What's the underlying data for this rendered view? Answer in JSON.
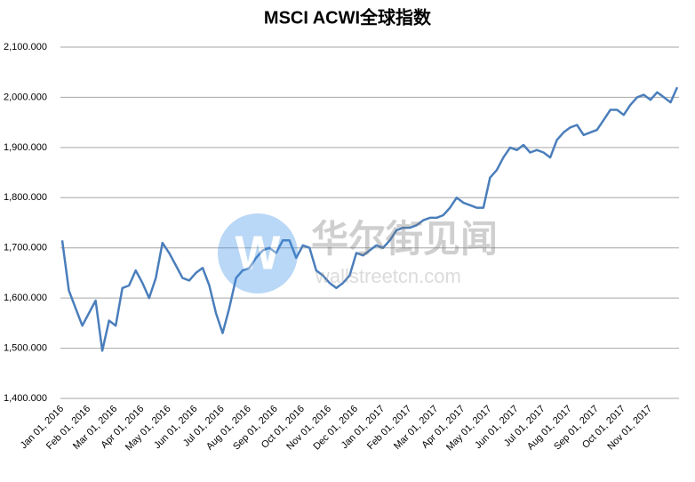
{
  "chart_data": {
    "type": "line",
    "title": "MSCI ACWI全球指数",
    "categories": [
      "Jan 01, 2016",
      null,
      null,
      null,
      "Feb 01, 2016",
      null,
      null,
      null,
      "Mar 01, 2016",
      null,
      null,
      null,
      "Apr 01, 2016",
      null,
      null,
      null,
      "May 01, 2016",
      null,
      null,
      null,
      "Jun 01, 2016",
      null,
      null,
      null,
      "Jul 01, 2016",
      null,
      null,
      null,
      "Aug 01, 2016",
      null,
      null,
      null,
      "Sep 01, 2016",
      null,
      null,
      null,
      "Oct 01, 2016",
      null,
      null,
      null,
      "Nov 01, 2016",
      null,
      null,
      null,
      "Dec 01, 2016",
      null,
      null,
      null,
      "Jan 01, 2017",
      null,
      null,
      null,
      "Feb 01, 2017",
      null,
      null,
      null,
      "Mar 01, 2017",
      null,
      null,
      null,
      "Apr 01, 2017",
      null,
      null,
      null,
      "May 01, 2017",
      null,
      null,
      null,
      "Jun 01, 2017",
      null,
      null,
      null,
      "Jul 01, 2017",
      null,
      null,
      null,
      "Aug 01, 2017",
      null,
      null,
      null,
      "Sep 01, 2017",
      null,
      null,
      null,
      "Oct 01, 2017",
      null,
      null,
      null,
      "Nov 01, 2017",
      null,
      null,
      null,
      null
    ],
    "values": [
      1715,
      1615,
      1580,
      1545,
      1570,
      1595,
      1495,
      1555,
      1545,
      1620,
      1625,
      1655,
      1630,
      1600,
      1640,
      1710,
      1690,
      1665,
      1640,
      1635,
      1650,
      1660,
      1625,
      1570,
      1530,
      1580,
      1640,
      1655,
      1660,
      1680,
      1695,
      1700,
      1690,
      1715,
      1715,
      1680,
      1705,
      1700,
      1655,
      1645,
      1630,
      1620,
      1630,
      1645,
      1690,
      1685,
      1695,
      1705,
      1700,
      1715,
      1735,
      1740,
      1740,
      1745,
      1755,
      1760,
      1760,
      1765,
      1780,
      1800,
      1790,
      1785,
      1780,
      1780,
      1840,
      1855,
      1880,
      1900,
      1895,
      1905,
      1890,
      1895,
      1890,
      1880,
      1915,
      1930,
      1940,
      1945,
      1925,
      1930,
      1935,
      1955,
      1975,
      1975,
      1965,
      1985,
      2000,
      2005,
      1995,
      2010,
      2000,
      1990,
      2020
    ],
    "color": "#4a7ebb",
    "ylim": [
      1400,
      2100
    ],
    "yticks": [
      {
        "value": 1400,
        "label": "1,400.000"
      },
      {
        "value": 1500,
        "label": "1,500.000"
      },
      {
        "value": 1600,
        "label": "1,600.000"
      },
      {
        "value": 1700,
        "label": "1,700.000"
      },
      {
        "value": 1800,
        "label": "1,800.000"
      },
      {
        "value": 1900,
        "label": "1,900.000"
      },
      {
        "value": 2000,
        "label": "2,000.000"
      },
      {
        "value": 2100,
        "label": "2,100.000"
      }
    ],
    "grid": true,
    "watermark": {
      "logo": "W",
      "name": "华尔街见闻",
      "url": "wallstreetcn.com"
    }
  }
}
